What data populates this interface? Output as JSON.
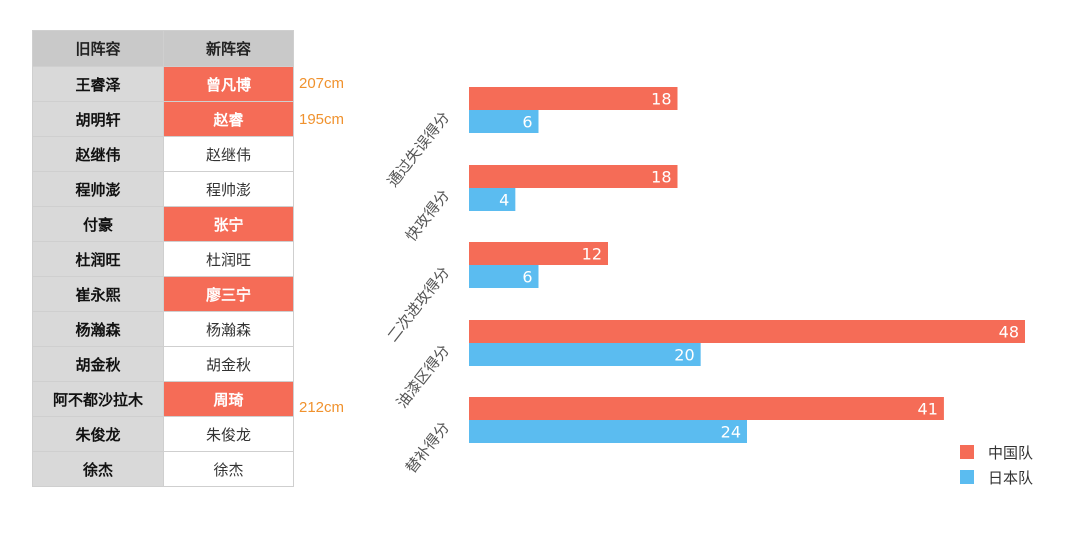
{
  "roster": {
    "headers": [
      "旧阵容",
      "新阵容"
    ],
    "rows": [
      {
        "old": "王睿泽",
        "new": "曾凡博",
        "changed": true,
        "height": "207cm"
      },
      {
        "old": "胡明轩",
        "new": "赵睿",
        "changed": true,
        "height": "195cm"
      },
      {
        "old": "赵继伟",
        "new": "赵继伟",
        "changed": false,
        "height": ""
      },
      {
        "old": "程帅澎",
        "new": "程帅澎",
        "changed": false,
        "height": ""
      },
      {
        "old": "付豪",
        "new": "张宁",
        "changed": true,
        "height": ""
      },
      {
        "old": "杜润旺",
        "new": "杜润旺",
        "changed": false,
        "height": ""
      },
      {
        "old": "崔永熙",
        "new": "廖三宁",
        "changed": true,
        "height": ""
      },
      {
        "old": "杨瀚森",
        "new": "杨瀚森",
        "changed": false,
        "height": ""
      },
      {
        "old": "胡金秋",
        "new": "胡金秋",
        "changed": false,
        "height": ""
      },
      {
        "old": "阿不都沙拉木",
        "new": "周琦",
        "changed": true,
        "height": "212cm"
      },
      {
        "old": "朱俊龙",
        "new": "朱俊龙",
        "changed": false,
        "height": ""
      },
      {
        "old": "徐杰",
        "new": "徐杰",
        "changed": false,
        "height": ""
      }
    ],
    "colors": {
      "changed": "#f56c57",
      "height_note": "#f0922e"
    }
  },
  "chart_data": {
    "type": "bar",
    "orientation": "horizontal",
    "categories": [
      "通过失误得分",
      "快攻得分",
      "二次进攻得分",
      "油漆区得分",
      "替补得分"
    ],
    "series": [
      {
        "name": "中国队",
        "values": [
          18,
          18,
          12,
          48,
          41
        ],
        "color": "#f56c57"
      },
      {
        "name": "日本队",
        "values": [
          6,
          4,
          6,
          20,
          24
        ],
        "color": "#5bbcf0"
      }
    ],
    "xlim": [
      0,
      48
    ],
    "grid": false,
    "legend_position": "bottom-right"
  }
}
